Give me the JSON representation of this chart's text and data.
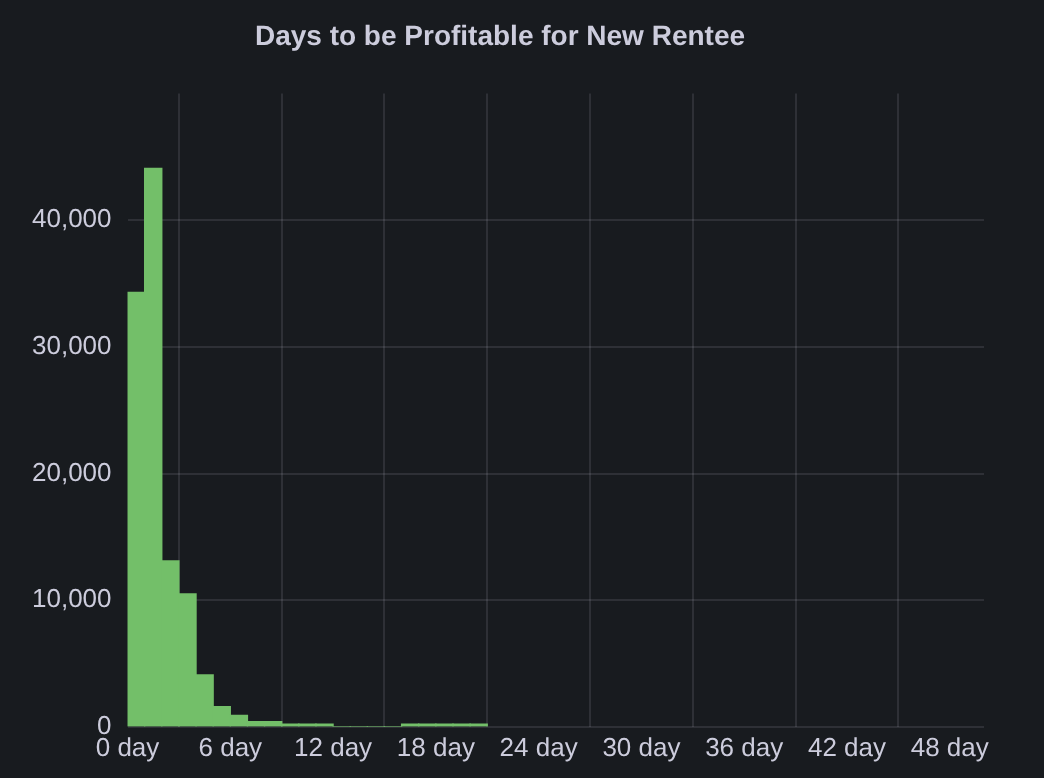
{
  "chart_data": {
    "type": "histogram",
    "title": "Days to be Profitable for New Rentee",
    "bins": [
      0,
      1,
      2,
      3,
      4,
      5,
      6,
      7,
      8,
      9,
      10,
      11,
      12,
      13,
      14,
      15,
      16,
      17,
      18,
      19,
      20,
      21
    ],
    "values": [
      34300,
      44100,
      13100,
      10500,
      4100,
      1600,
      900,
      400,
      400,
      200,
      200,
      200,
      0,
      0,
      0,
      0,
      200,
      200,
      200,
      200,
      200
    ],
    "color": "#73bf69",
    "xlim": [
      0,
      50
    ],
    "xticks": [
      {
        "value": 0,
        "label": "0 day"
      },
      {
        "value": 6,
        "label": "6 day"
      },
      {
        "value": 12,
        "label": "12 day"
      },
      {
        "value": 18,
        "label": "18 day"
      },
      {
        "value": 24,
        "label": "24 day"
      },
      {
        "value": 30,
        "label": "30 day"
      },
      {
        "value": 36,
        "label": "36 day"
      },
      {
        "value": 42,
        "label": "42 day"
      },
      {
        "value": 48,
        "label": "48 day"
      }
    ],
    "ylim": [
      0,
      50000
    ],
    "yticks": [
      {
        "value": 0,
        "label": "0"
      },
      {
        "value": 10000,
        "label": "10,000"
      },
      {
        "value": 20000,
        "label": "20,000"
      },
      {
        "value": 30000,
        "label": "30,000"
      },
      {
        "value": 40000,
        "label": "40,000"
      }
    ],
    "grid": true
  }
}
